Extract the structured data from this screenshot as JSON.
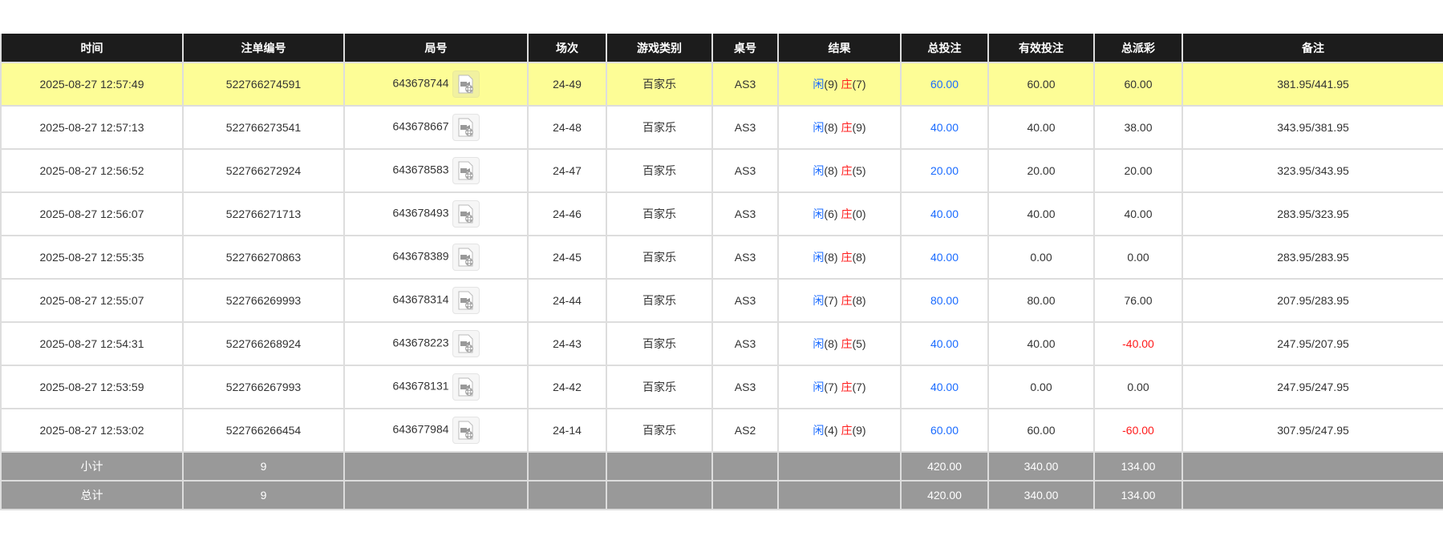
{
  "headers": [
    "时间",
    "注单编号",
    "局号",
    "场次",
    "游戏类别",
    "桌号",
    "结果",
    "总投注",
    "有效投注",
    "总派彩",
    "备注"
  ],
  "result_labels": {
    "player": "闲",
    "banker": "庄"
  },
  "rows": [
    {
      "time": "2025-08-27 12:57:49",
      "order": "522766274591",
      "round": "643678744",
      "session": "24-49",
      "game": "百家乐",
      "table": "AS3",
      "player": "(9)",
      "banker": "(7)",
      "bet": "60.00",
      "valid": "60.00",
      "payout": "60.00",
      "note": "381.95/441.95"
    },
    {
      "time": "2025-08-27 12:57:13",
      "order": "522766273541",
      "round": "643678667",
      "session": "24-48",
      "game": "百家乐",
      "table": "AS3",
      "player": "(8)",
      "banker": "(9)",
      "bet": "40.00",
      "valid": "40.00",
      "payout": "38.00",
      "note": "343.95/381.95"
    },
    {
      "time": "2025-08-27 12:56:52",
      "order": "522766272924",
      "round": "643678583",
      "session": "24-47",
      "game": "百家乐",
      "table": "AS3",
      "player": "(8)",
      "banker": "(5)",
      "bet": "20.00",
      "valid": "20.00",
      "payout": "20.00",
      "note": "323.95/343.95"
    },
    {
      "time": "2025-08-27 12:56:07",
      "order": "522766271713",
      "round": "643678493",
      "session": "24-46",
      "game": "百家乐",
      "table": "AS3",
      "player": "(6)",
      "banker": "(0)",
      "bet": "40.00",
      "valid": "40.00",
      "payout": "40.00",
      "note": "283.95/323.95"
    },
    {
      "time": "2025-08-27 12:55:35",
      "order": "522766270863",
      "round": "643678389",
      "session": "24-45",
      "game": "百家乐",
      "table": "AS3",
      "player": "(8)",
      "banker": "(8)",
      "bet": "40.00",
      "valid": "0.00",
      "payout": "0.00",
      "note": "283.95/283.95"
    },
    {
      "time": "2025-08-27 12:55:07",
      "order": "522766269993",
      "round": "643678314",
      "session": "24-44",
      "game": "百家乐",
      "table": "AS3",
      "player": "(7)",
      "banker": "(8)",
      "bet": "80.00",
      "valid": "80.00",
      "payout": "76.00",
      "note": "207.95/283.95"
    },
    {
      "time": "2025-08-27 12:54:31",
      "order": "522766268924",
      "round": "643678223",
      "session": "24-43",
      "game": "百家乐",
      "table": "AS3",
      "player": "(8)",
      "banker": "(5)",
      "bet": "40.00",
      "valid": "40.00",
      "payout": "-40.00",
      "note": "247.95/207.95"
    },
    {
      "time": "2025-08-27 12:53:59",
      "order": "522766267993",
      "round": "643678131",
      "session": "24-42",
      "game": "百家乐",
      "table": "AS3",
      "player": "(7)",
      "banker": "(7)",
      "bet": "40.00",
      "valid": "0.00",
      "payout": "0.00",
      "note": "247.95/247.95"
    },
    {
      "time": "2025-08-27 12:53:02",
      "order": "522766266454",
      "round": "643677984",
      "session": "24-14",
      "game": "百家乐",
      "table": "AS2",
      "player": "(4)",
      "banker": "(9)",
      "bet": "60.00",
      "valid": "60.00",
      "payout": "-60.00",
      "note": "307.95/247.95"
    }
  ],
  "subtotal": {
    "label": "小计",
    "count": "9",
    "bet": "420.00",
    "valid": "340.00",
    "payout": "134.00"
  },
  "total": {
    "label": "总计",
    "count": "9",
    "bet": "420.00",
    "valid": "340.00",
    "payout": "134.00"
  },
  "colors": {
    "header_bg": "#1c1c1c",
    "highlight_row": "#fdfd96",
    "footer_bg": "#999999",
    "player": "#1a6bff",
    "banker": "#ff1a1a",
    "negative": "#ff1a1a"
  },
  "icons": {
    "replay": "video-file-icon"
  }
}
